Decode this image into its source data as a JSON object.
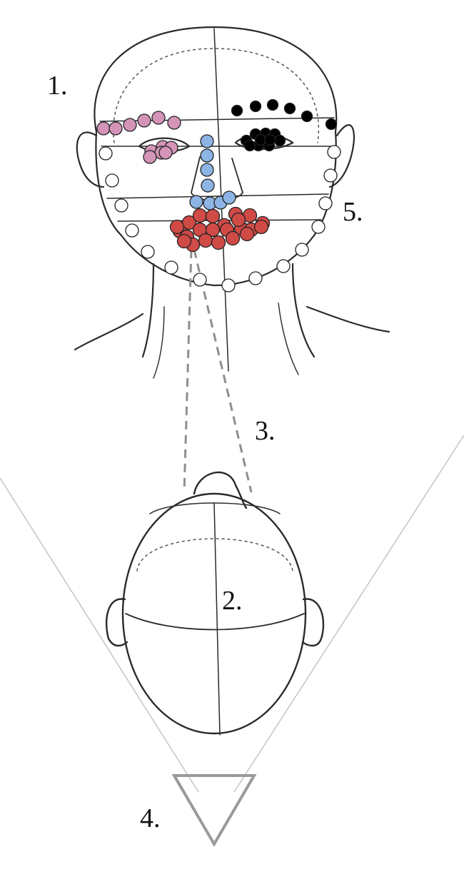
{
  "labels": {
    "one": "1.",
    "two": "2.",
    "three": "3.",
    "four": "4.",
    "five": "5."
  },
  "colors": {
    "sketch": "#2a2a2a",
    "pink_marker": "#d494b8",
    "black_marker": "#000000",
    "blue_marker": "#8cb4e4",
    "red_marker": "#d04a46",
    "white_marker": "#ffffff",
    "dashed_line": "#8e8e8e",
    "triangle": "#9a9a9a",
    "view_lines": "#c4c4c4"
  },
  "marker_groups": [
    "left-eyebrow-eye",
    "right-eyebrow-eye",
    "nose",
    "mouth",
    "jawline"
  ]
}
